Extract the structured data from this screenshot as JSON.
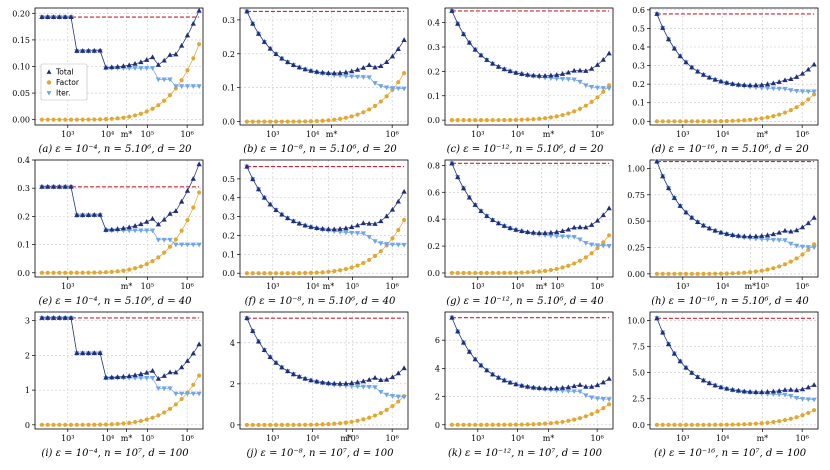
{
  "chart_data": {
    "type": "line",
    "x_scale": "log",
    "xlim": [
      150,
      2500000
    ],
    "grid": true,
    "legend": {
      "location": "first panel, left middle",
      "entries": [
        "Total",
        "Factor",
        "Iter."
      ]
    },
    "series_styles": [
      {
        "name": "Total",
        "color": "#1f2f7a",
        "marker": "triangle-up"
      },
      {
        "name": "Factor",
        "color": "#e3a72f",
        "marker": "circle"
      },
      {
        "name": "Iter.",
        "color": "#6fa6ea",
        "marker": "triangle-down"
      }
    ],
    "reference_line_color": "#cc2233",
    "panels": [
      {
        "caption": "(a)  ε = 10⁻⁴, n = 5.10⁶, d = 20",
        "ylim": [
          -0.01,
          0.21
        ],
        "yticks": [
          "0.00",
          "0.05",
          "0.10",
          "0.15",
          "0.20"
        ],
        "ytick_values": [
          0,
          0.05,
          0.1,
          0.15,
          0.2
        ],
        "xticks": [
          "10³",
          "10⁴",
          "m*",
          "10⁵",
          "10⁶"
        ],
        "xtick_values": [
          1000,
          10000,
          30000,
          100000,
          1000000
        ],
        "ref": 0.193,
        "total_start": 0.193,
        "total_min": 0.097,
        "total_end": 0.205,
        "factor_end": 0.142,
        "iter_end": 0.063,
        "iter_split": 0.75,
        "steps": true,
        "legend": true
      },
      {
        "caption": "(b)  ε = 10⁻⁸, n = 5.10⁶, d = 20",
        "ylim": [
          -0.01,
          0.335
        ],
        "yticks": [
          "0.0",
          "0.1",
          "0.2",
          "0.3"
        ],
        "ytick_values": [
          0,
          0.1,
          0.2,
          0.3
        ],
        "xticks": [
          "10³",
          "10⁴",
          "m*",
          "10⁶"
        ],
        "xtick_values": [
          1000,
          10000,
          30000,
          1000000
        ],
        "ref": 0.325,
        "total_start": 0.325,
        "total_min": 0.128,
        "total_end": 0.237,
        "factor_end": 0.143,
        "iter_end": 0.097,
        "iter_split": 0.78,
        "steps": false,
        "legend": false
      },
      {
        "caption": "(c)  ε = 10⁻¹², n = 5.10⁶, d = 20",
        "ylim": [
          -0.02,
          0.46
        ],
        "yticks": [
          "0.0",
          "0.1",
          "0.2",
          "0.3",
          "0.4"
        ],
        "ytick_values": [
          0,
          0.1,
          0.2,
          0.3,
          0.4
        ],
        "xticks": [
          "10³",
          "10⁴",
          "m*",
          "10⁶"
        ],
        "xtick_values": [
          1000,
          10000,
          60000,
          1000000
        ],
        "ref": 0.448,
        "total_start": 0.448,
        "total_min": 0.163,
        "total_end": 0.27,
        "factor_end": 0.143,
        "iter_end": 0.13,
        "iter_split": 0.8,
        "steps": false,
        "legend": false
      },
      {
        "caption": "(d)  ε = 10⁻¹⁶, n = 5.10⁶, d = 20",
        "ylim": [
          -0.02,
          0.61
        ],
        "yticks": [
          "0.0",
          "0.1",
          "0.2",
          "0.3",
          "0.4",
          "0.5",
          "0.6"
        ],
        "ytick_values": [
          0,
          0.1,
          0.2,
          0.3,
          0.4,
          0.5,
          0.6
        ],
        "xticks": [
          "10³",
          "10⁴",
          "m*",
          "10⁶"
        ],
        "xtick_values": [
          1000,
          10000,
          100000,
          1000000
        ],
        "ref": 0.578,
        "total_start": 0.578,
        "total_min": 0.17,
        "total_end": 0.27,
        "factor_end": 0.145,
        "iter_end": 0.16,
        "iter_split": 0.82,
        "steps": false,
        "legend": false
      },
      {
        "caption": "(e)  ε = 10⁻⁴, n = 5.10⁶, d = 40",
        "ylim": [
          -0.015,
          0.4
        ],
        "yticks": [
          "0.0",
          "0.1",
          "0.2",
          "0.3",
          "0.4"
        ],
        "ytick_values": [
          0,
          0.1,
          0.2,
          0.3,
          0.4
        ],
        "xticks": [
          "10³",
          "m*",
          "10⁵",
          "10⁶"
        ],
        "xtick_values": [
          1000,
          30000,
          100000,
          1000000
        ],
        "ref": 0.305,
        "total_start": 0.305,
        "total_min": 0.15,
        "total_end": 0.38,
        "factor_end": 0.285,
        "iter_end": 0.1,
        "iter_split": 0.72,
        "steps": true,
        "legend": false
      },
      {
        "caption": "(f)  ε = 10⁻⁸, n = 5.10⁶, d = 40",
        "ylim": [
          -0.02,
          0.6
        ],
        "yticks": [
          "0.0",
          "0.1",
          "0.2",
          "0.3",
          "0.4",
          "0.5"
        ],
        "ytick_values": [
          0,
          0.1,
          0.2,
          0.3,
          0.4,
          0.5
        ],
        "xticks": [
          "10³",
          "10⁴",
          "m*",
          "10⁵",
          "10⁶"
        ],
        "xtick_values": [
          1000,
          10000,
          25000,
          100000,
          1000000
        ],
        "ref": 0.565,
        "total_start": 0.565,
        "total_min": 0.205,
        "total_end": 0.43,
        "factor_end": 0.282,
        "iter_end": 0.15,
        "iter_split": 0.76,
        "steps": false,
        "legend": false
      },
      {
        "caption": "(g)  ε = 10⁻¹², n = 5.10⁶, d = 40",
        "ylim": [
          -0.03,
          0.84
        ],
        "yticks": [
          "0.0",
          "0.2",
          "0.4",
          "0.6",
          "0.8"
        ],
        "ytick_values": [
          0,
          0.2,
          0.4,
          0.6,
          0.8
        ],
        "xticks": [
          "10³",
          "10⁴",
          "m*",
          "10⁵",
          "10⁶"
        ],
        "xtick_values": [
          1000,
          10000,
          40000,
          100000,
          1000000
        ],
        "ref": 0.815,
        "total_start": 0.815,
        "total_min": 0.26,
        "total_end": 0.48,
        "factor_end": 0.28,
        "iter_end": 0.2,
        "iter_split": 0.8,
        "steps": false,
        "legend": false
      },
      {
        "caption": "(h)  ε = 10⁻¹⁶, n = 5.10⁶, d = 40",
        "ylim": [
          -0.03,
          1.08
        ],
        "yticks": [
          "0.00",
          "0.25",
          "0.50",
          "0.75",
          "1.00"
        ],
        "ytick_values": [
          0,
          0.25,
          0.5,
          0.75,
          1
        ],
        "xticks": [
          "10³",
          "10⁴",
          "m*",
          "10⁵",
          "10⁶"
        ],
        "xtick_values": [
          1000,
          10000,
          50000,
          100000,
          1000000
        ],
        "ref": 1.065,
        "total_start": 1.065,
        "total_min": 0.31,
        "total_end": 0.53,
        "factor_end": 0.28,
        "iter_end": 0.25,
        "iter_split": 0.82,
        "steps": false,
        "legend": false
      },
      {
        "caption": "(i)  ε = 10⁻⁴, n = 10⁷, d = 100",
        "ylim": [
          -0.12,
          3.25
        ],
        "yticks": [
          "0",
          "1",
          "2",
          "3"
        ],
        "ytick_values": [
          0,
          1,
          2,
          3
        ],
        "xticks": [
          "10³",
          "10⁴",
          "m*",
          "10⁵",
          "10⁶"
        ],
        "xtick_values": [
          1000,
          10000,
          30000,
          100000,
          1000000
        ],
        "ref": 3.08,
        "total_start": 3.08,
        "total_min": 1.35,
        "total_end": 2.3,
        "factor_end": 1.42,
        "iter_end": 0.9,
        "iter_split": 0.78,
        "steps": true,
        "legend": false
      },
      {
        "caption": "(j)  ε = 10⁻⁸, n = 10⁷, d = 100",
        "ylim": [
          -0.2,
          5.5
        ],
        "yticks": [
          "0",
          "2",
          "4"
        ],
        "ytick_values": [
          0,
          2,
          4
        ],
        "xticks": [
          "10³",
          "10⁴",
          "m*",
          "10⁵",
          "10⁶"
        ],
        "xtick_values": [
          1000,
          10000,
          70000,
          100000,
          1000000
        ],
        "ref": 5.2,
        "total_start": 5.2,
        "total_min": 1.8,
        "total_end": 2.7,
        "factor_end": 1.4,
        "iter_end": 1.35,
        "iter_split": 0.82,
        "steps": false,
        "legend": false
      },
      {
        "caption": "(k)  ε = 10⁻¹², n = 10⁷, d = 100",
        "ylim": [
          -0.3,
          8.0
        ],
        "yticks": [
          "0",
          "2",
          "4",
          "6"
        ],
        "ytick_values": [
          0,
          2,
          4,
          6
        ],
        "xticks": [
          "10³",
          "10⁴",
          "m*",
          "10⁶"
        ],
        "xtick_values": [
          1000,
          10000,
          60000,
          1000000
        ],
        "ref": 7.6,
        "total_start": 7.6,
        "total_min": 2.3,
        "total_end": 3.2,
        "factor_end": 1.45,
        "iter_end": 1.8,
        "iter_split": 0.82,
        "steps": false,
        "legend": false
      },
      {
        "caption": "(ℓ)  ε = 10⁻¹⁶, n = 10⁷, d = 100",
        "ylim": [
          -0.4,
          10.8
        ],
        "yticks": [
          "0.0",
          "2.5",
          "5.0",
          "7.5",
          "10.0"
        ],
        "ytick_values": [
          0,
          2.5,
          5,
          7.5,
          10
        ],
        "xticks": [
          "10³",
          "10⁴",
          "m*",
          "10⁶"
        ],
        "xtick_values": [
          1000,
          10000,
          100000,
          1000000
        ],
        "ref": 10.2,
        "total_start": 10.2,
        "total_min": 2.8,
        "total_end": 3.7,
        "factor_end": 1.4,
        "iter_end": 2.4,
        "iter_split": 0.84,
        "steps": false,
        "legend": false
      }
    ]
  }
}
